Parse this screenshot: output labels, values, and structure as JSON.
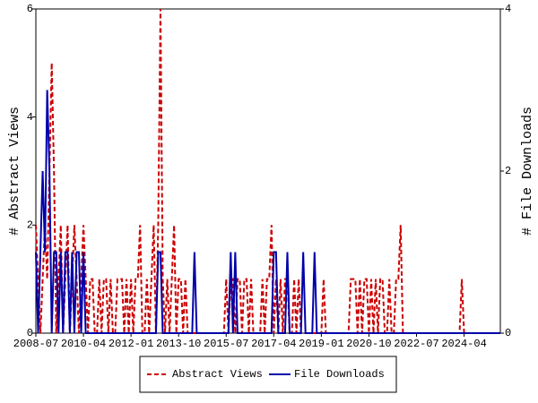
{
  "chart_data": {
    "type": "line",
    "x": [
      "2008-07",
      "2008-08",
      "2008-09",
      "2008-10",
      "2008-11",
      "2008-12",
      "2009-01",
      "2009-02",
      "2009-03",
      "2009-04",
      "2009-05",
      "2009-06",
      "2009-07",
      "2009-08",
      "2009-09",
      "2009-10",
      "2009-11",
      "2009-12",
      "2010-01",
      "2010-02",
      "2010-03",
      "2010-04",
      "2010-05",
      "2010-06",
      "2010-07",
      "2010-08",
      "2010-09",
      "2010-10",
      "2010-11",
      "2010-12",
      "2011-01",
      "2011-02",
      "2011-03",
      "2011-04",
      "2011-05",
      "2011-06",
      "2011-07",
      "2011-08",
      "2011-09",
      "2011-10",
      "2011-11",
      "2011-12",
      "2012-01",
      "2012-02",
      "2012-03",
      "2012-04",
      "2012-05",
      "2012-06",
      "2012-07",
      "2012-08",
      "2012-09",
      "2012-10",
      "2012-11",
      "2012-12",
      "2013-01",
      "2013-02",
      "2013-03",
      "2013-04",
      "2013-05",
      "2013-06",
      "2013-07",
      "2013-08",
      "2013-09",
      "2013-10",
      "2013-11",
      "2013-12",
      "2014-01",
      "2014-02",
      "2014-03",
      "2014-04",
      "2014-05",
      "2014-06",
      "2014-07",
      "2014-08",
      "2014-09",
      "2014-10",
      "2014-11",
      "2014-12",
      "2015-01",
      "2015-02",
      "2015-03",
      "2015-04",
      "2015-05",
      "2015-06",
      "2015-07",
      "2015-08",
      "2015-09",
      "2015-10",
      "2015-11",
      "2015-12",
      "2016-01",
      "2016-02",
      "2016-03",
      "2016-04",
      "2016-05",
      "2016-06",
      "2016-07",
      "2016-08",
      "2016-09",
      "2016-10",
      "2016-11",
      "2016-12",
      "2017-01",
      "2017-02",
      "2017-03",
      "2017-04",
      "2017-05",
      "2017-06",
      "2017-07",
      "2017-08",
      "2017-09",
      "2017-10",
      "2017-11",
      "2017-12",
      "2018-01",
      "2018-02",
      "2018-03",
      "2018-04",
      "2018-05",
      "2018-06",
      "2018-07",
      "2018-08",
      "2018-09",
      "2018-10",
      "2018-11",
      "2018-12",
      "2019-01",
      "2019-02",
      "2019-03",
      "2019-04",
      "2019-05",
      "2019-06",
      "2019-07",
      "2019-08",
      "2019-09",
      "2019-10",
      "2019-11",
      "2019-12",
      "2020-01",
      "2020-02",
      "2020-03",
      "2020-04",
      "2020-05",
      "2020-06",
      "2020-07",
      "2020-08",
      "2020-09",
      "2020-10",
      "2020-11",
      "2020-12",
      "2021-01",
      "2021-02",
      "2021-03",
      "2021-04",
      "2021-05",
      "2021-06",
      "2021-07",
      "2021-08",
      "2021-09",
      "2021-10",
      "2021-11",
      "2021-12",
      "2022-01",
      "2022-02",
      "2022-03",
      "2022-04",
      "2022-05",
      "2022-06",
      "2022-07",
      "2022-08",
      "2022-09",
      "2022-10",
      "2022-11",
      "2022-12",
      "2023-01",
      "2023-02",
      "2023-03",
      "2023-04",
      "2023-05",
      "2023-06",
      "2023-07",
      "2023-08",
      "2023-09",
      "2023-10",
      "2023-11",
      "2023-12",
      "2024-01",
      "2024-02",
      "2024-03",
      "2024-04",
      "2024-05",
      "2024-06",
      "2024-07",
      "2024-08",
      "2024-09",
      "2024-10",
      "2024-11",
      "2024-12",
      "2025-01",
      "2025-02",
      "2025-03",
      "2025-04",
      "2025-05",
      "2025-06",
      "2025-07",
      "2025-08"
    ],
    "xlim": [
      "2008-07",
      "2025-08"
    ],
    "xticks": [
      "2008-07",
      "2010-04",
      "2012-01",
      "2013-10",
      "2015-07",
      "2017-04",
      "2019-01",
      "2020-10",
      "2022-07",
      "2024-04"
    ],
    "ylabel": "# Abstract Views",
    "y2label": "# File Downloads",
    "ylim": [
      0,
      6
    ],
    "yticks": [
      0,
      2,
      4,
      6
    ],
    "y2lim": [
      0,
      4
    ],
    "y2ticks": [
      0,
      2,
      4
    ],
    "legend": "bottom",
    "series": [
      {
        "name": "Abstract Views",
        "color": "#cc0000",
        "dash": true,
        "values": [
          2,
          1,
          0,
          1,
          2,
          1,
          3,
          5,
          3,
          0,
          1,
          2,
          0,
          1,
          2,
          0,
          1,
          2,
          1,
          0,
          1,
          2,
          1,
          0,
          1,
          1,
          0,
          0,
          1,
          0,
          1,
          1,
          0,
          1,
          0,
          0,
          1,
          1,
          1,
          0,
          1,
          0,
          1,
          0,
          1,
          1,
          2,
          0,
          0,
          1,
          0,
          1,
          2,
          0,
          2,
          6,
          1,
          0,
          1,
          0,
          1,
          2,
          0,
          1,
          1,
          0,
          1,
          0,
          0,
          0,
          0,
          0,
          0,
          0,
          0,
          0,
          0,
          0,
          0,
          0,
          0,
          0,
          0,
          0,
          1,
          0,
          1,
          1,
          0,
          1,
          1,
          0,
          1,
          1,
          0,
          1,
          0,
          0,
          0,
          0,
          1,
          0,
          1,
          1,
          2,
          0,
          1,
          0,
          1,
          0,
          1,
          1,
          0,
          0,
          1,
          0,
          1,
          0,
          0,
          0,
          0,
          0,
          0,
          0,
          0,
          0,
          0,
          1,
          0,
          0,
          0,
          0,
          0,
          0,
          0,
          0,
          0,
          0,
          0,
          1,
          1,
          1,
          0,
          1,
          0,
          1,
          1,
          0,
          1,
          0,
          1,
          0,
          1,
          1,
          0,
          0,
          1,
          0,
          0,
          1,
          1,
          2,
          0,
          0,
          0,
          0,
          0,
          0,
          0,
          0,
          0,
          0,
          0,
          0,
          0,
          0,
          0,
          0,
          0,
          0,
          0,
          0,
          0,
          0,
          0,
          0,
          0,
          0,
          1,
          0,
          0,
          0,
          0,
          0,
          0,
          0,
          0,
          0,
          0,
          0,
          0,
          0,
          0,
          0,
          0,
          0
        ]
      },
      {
        "name": "File Downloads",
        "color": "#0000aa",
        "axis": "y2",
        "values": [
          1,
          0,
          1,
          2,
          1,
          3,
          2,
          0,
          1,
          1,
          0,
          1,
          0,
          1,
          1,
          0,
          1,
          0,
          1,
          1,
          0,
          1,
          0,
          0,
          0,
          0,
          0,
          0,
          0,
          0,
          0,
          0,
          0,
          0,
          0,
          0,
          0,
          0,
          0,
          0,
          0,
          0,
          0,
          0,
          0,
          0,
          0,
          0,
          0,
          0,
          0,
          0,
          0,
          0,
          1,
          1,
          0,
          0,
          0,
          0,
          0,
          0,
          0,
          0,
          0,
          0,
          0,
          0,
          0,
          0,
          1,
          0,
          0,
          0,
          0,
          0,
          0,
          0,
          0,
          0,
          0,
          0,
          0,
          0,
          0,
          0,
          1,
          0,
          1,
          0,
          0,
          0,
          0,
          0,
          0,
          0,
          0,
          0,
          0,
          0,
          0,
          0,
          0,
          0,
          0,
          1,
          1,
          0,
          0,
          0,
          0,
          1,
          0,
          0,
          0,
          0,
          0,
          0,
          1,
          0,
          0,
          0,
          0,
          1,
          0,
          0,
          0,
          0,
          0,
          0,
          0,
          0,
          0,
          0,
          0,
          0,
          0,
          0,
          0,
          0,
          0,
          0,
          0,
          0,
          0,
          0,
          0,
          0,
          0,
          0,
          0,
          0,
          0,
          0,
          0,
          0,
          0,
          0,
          0,
          0,
          0,
          0,
          0,
          0,
          0,
          0,
          0,
          0,
          0,
          0,
          0,
          0,
          0,
          0,
          0,
          0,
          0,
          0,
          0,
          0,
          0,
          0,
          0,
          0,
          0,
          0,
          0,
          0,
          0,
          0,
          0,
          0,
          0,
          0,
          0,
          0,
          0,
          0,
          0,
          0,
          0,
          0,
          0,
          0,
          0,
          0
        ]
      }
    ]
  }
}
